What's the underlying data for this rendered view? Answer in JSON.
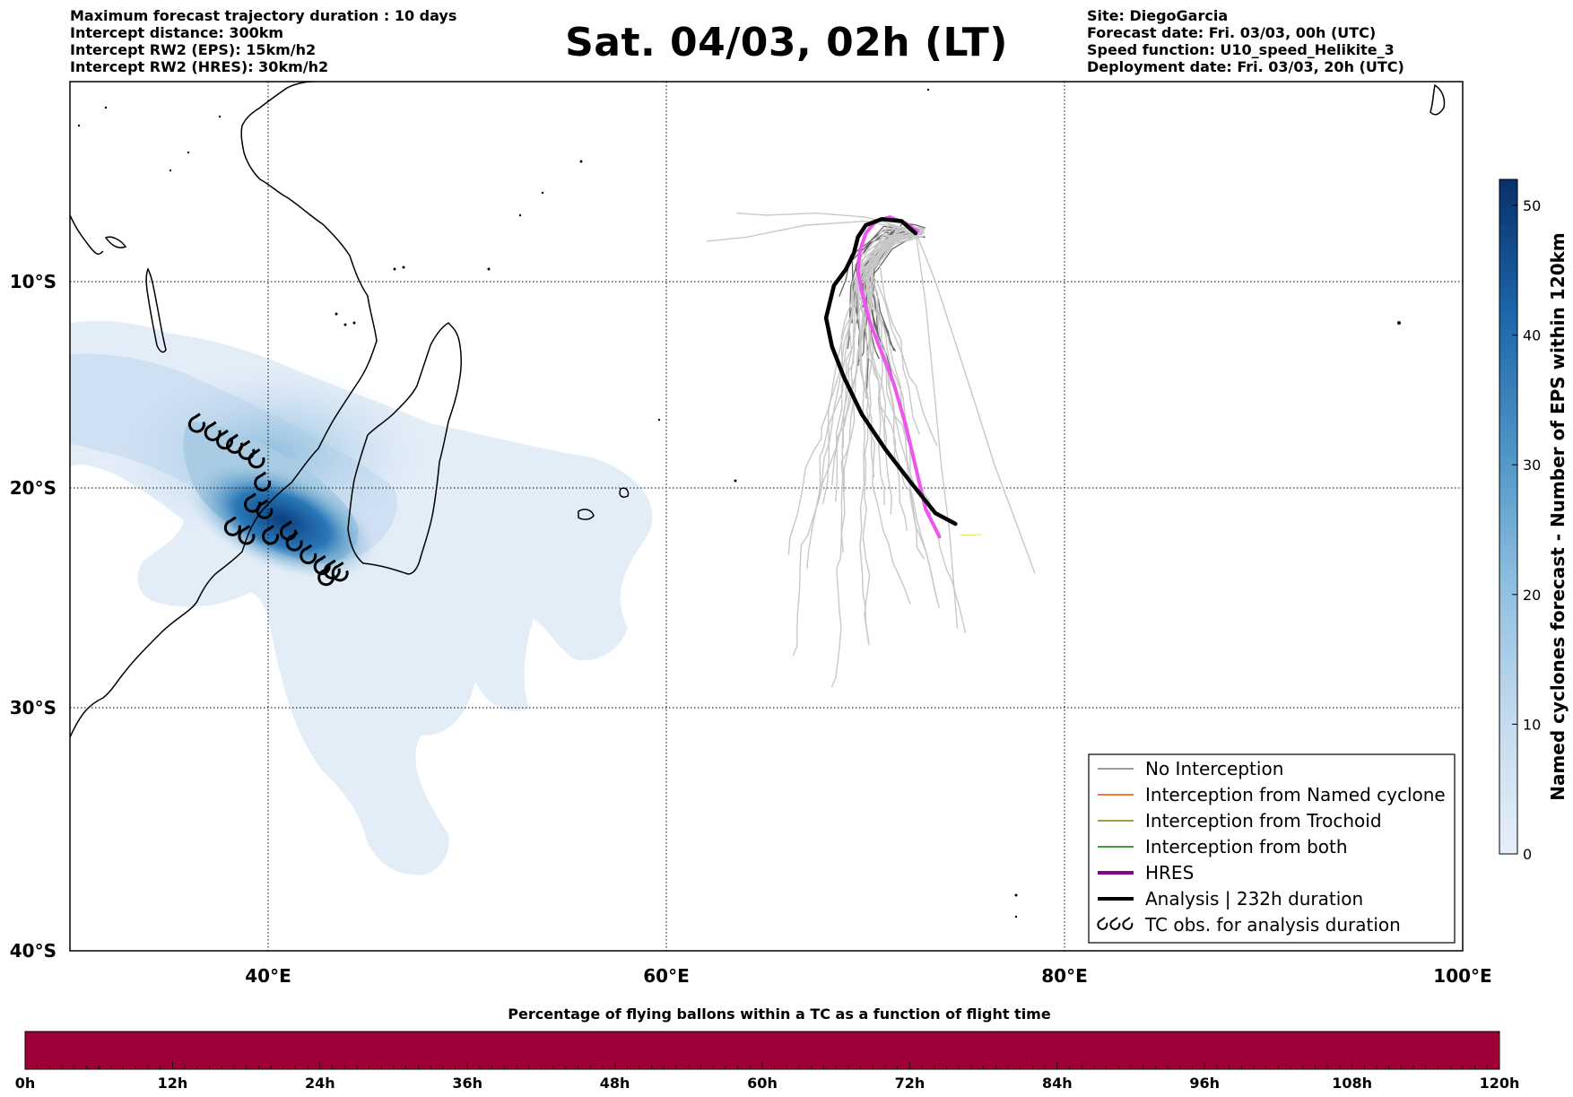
{
  "header_left": [
    "Maximum forecast trajectory duration : 10 days",
    "Intercept distance: 300km",
    "Intercept RW2 (EPS):  15km/h2",
    "Intercept RW2 (HRES): 30km/h2"
  ],
  "header_right": [
    "Site: DiegoGarcia",
    "Forecast date: Fri. 03/03, 00h (UTC)",
    "Speed function: U10_speed_Helikite_3",
    "Deployment date: Fri. 03/03, 20h (UTC)"
  ],
  "title": "Sat. 04/03, 02h (LT)",
  "map": {
    "lon_range": [
      30,
      100
    ],
    "lat_range": [
      -40,
      0
    ],
    "lon_ticks": [
      {
        "value": 40,
        "label": "40°E"
      },
      {
        "value": 60,
        "label": "60°E"
      },
      {
        "value": 80,
        "label": "80°E"
      },
      {
        "value": 100,
        "label": "100°E"
      }
    ],
    "lat_ticks": [
      {
        "value": -10,
        "label": "10°S"
      },
      {
        "value": -20,
        "label": "20°S"
      },
      {
        "value": -30,
        "label": "30°S"
      },
      {
        "value": -40,
        "label": "40°S"
      }
    ],
    "hres_track": [
      [
        73.7,
        -22.3
      ],
      [
        73.0,
        -21.0
      ],
      [
        72.5,
        -19.0
      ],
      [
        72.0,
        -17.0
      ],
      [
        71.4,
        -15.0
      ],
      [
        70.8,
        -13.5
      ],
      [
        70.2,
        -12.0
      ],
      [
        69.8,
        -10.5
      ],
      [
        69.6,
        -9.5
      ],
      [
        69.7,
        -8.5
      ],
      [
        70.0,
        -7.6
      ],
      [
        70.5,
        -7.0
      ],
      [
        71.2,
        -6.8
      ],
      [
        72.0,
        -7.1
      ],
      [
        72.6,
        -7.5
      ]
    ],
    "analysis_track": [
      [
        74.5,
        -21.7
      ],
      [
        73.5,
        -21.2
      ],
      [
        72.3,
        -19.8
      ],
      [
        71.0,
        -18.2
      ],
      [
        69.8,
        -16.5
      ],
      [
        68.9,
        -14.7
      ],
      [
        68.3,
        -13.2
      ],
      [
        68.0,
        -11.8
      ],
      [
        68.4,
        -10.2
      ],
      [
        69.0,
        -9.4
      ],
      [
        69.4,
        -8.6
      ],
      [
        69.6,
        -7.8
      ],
      [
        70.0,
        -7.2
      ],
      [
        70.8,
        -6.9
      ],
      [
        71.8,
        -7.0
      ],
      [
        72.5,
        -7.6
      ]
    ],
    "tc_obs": [
      [
        36.4,
        -17.0
      ],
      [
        37.2,
        -17.4
      ],
      [
        37.8,
        -17.8
      ],
      [
        38.3,
        -18.0
      ],
      [
        38.9,
        -18.3
      ],
      [
        39.4,
        -18.7
      ],
      [
        39.7,
        -19.8
      ],
      [
        39.2,
        -20.8
      ],
      [
        39.8,
        -21.1
      ],
      [
        38.2,
        -21.9
      ],
      [
        38.9,
        -22.3
      ],
      [
        40.1,
        -22.3
      ],
      [
        41.0,
        -22.1
      ],
      [
        41.3,
        -22.6
      ],
      [
        42.0,
        -23.2
      ],
      [
        42.7,
        -23.7
      ],
      [
        43.2,
        -23.9
      ],
      [
        42.9,
        -24.2
      ],
      [
        43.6,
        -24.0
      ]
    ],
    "land_label": ""
  },
  "colorbar_right": {
    "label": "Named cyclones forecast - Number of EPS within 120km",
    "ticks": [
      "0",
      "10",
      "20",
      "30",
      "40",
      "50"
    ],
    "max": 52,
    "color_low": "#e3edf8",
    "color_high": "#08306b"
  },
  "legend": {
    "items": [
      {
        "label": "No Interception",
        "color": "#7f7f7f",
        "width": 1.5
      },
      {
        "label": "Interception from Named cyclone",
        "color": "#ff4500",
        "width": 1.5
      },
      {
        "label": "Interception from Trochoid",
        "color": "#808000",
        "width": 1.5
      },
      {
        "label": "Interception from both",
        "color": "#008000",
        "width": 1.5
      },
      {
        "label": "HRES",
        "color": "#8b008b",
        "width": 4
      },
      {
        "label": "Analysis | 232h duration",
        "color": "#000000",
        "width": 4
      },
      {
        "label": "TC obs. for analysis duration",
        "color": "#000000",
        "width": 0
      }
    ]
  },
  "bottom_bar": {
    "title": "Percentage of flying ballons within a TC as a function of flight time",
    "ticks": [
      "0h",
      "12h",
      "24h",
      "36h",
      "48h",
      "60h",
      "72h",
      "84h",
      "96h",
      "108h",
      "120h"
    ],
    "fill_fraction": 1.0,
    "color": "#a0003a"
  },
  "colors": {
    "hres": "#ee55ee",
    "analysis": "#000000",
    "ens_dark": "#666666",
    "ens_light": "#c8c8c8",
    "density_low": "#e3edf8",
    "density_mid": "#9ecae1",
    "density_high": "#08306b"
  }
}
